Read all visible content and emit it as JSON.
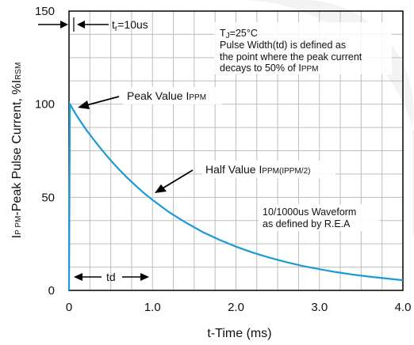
{
  "chart_data": {
    "type": "line",
    "title": "",
    "xlabel": "t-Time (ms)",
    "ylabel": "IPPM-Peak Pulse Current, %IRSM",
    "ylabel_parts": {
      "main": "I",
      "sub": "P PM",
      "rest": "-Peak Pulse Current, %I",
      "sub2": "RSM"
    },
    "xlim": [
      0,
      4.0
    ],
    "ylim": [
      0,
      150
    ],
    "x_ticks": [
      0,
      1.0,
      2.0,
      3.0,
      4.0
    ],
    "x_tick_labels": [
      "0",
      "1.0",
      "2.0",
      "3.0",
      "4.0"
    ],
    "y_ticks": [
      0,
      50,
      100,
      150
    ],
    "y_tick_labels": [
      "0",
      "50",
      "100",
      "150"
    ],
    "grid": true,
    "series": [
      {
        "color": "#1a9ad6",
        "x": [
          0,
          0.01,
          0.1,
          0.2,
          0.3,
          0.4,
          0.5,
          0.6,
          0.7,
          0.8,
          0.9,
          1.0,
          1.2,
          1.4,
          1.6,
          1.8,
          2.0,
          2.2,
          2.4,
          2.6,
          2.8,
          3.0,
          3.2,
          3.4,
          3.6,
          3.8,
          4.0
        ],
        "values": [
          0,
          100,
          93.3,
          86.7,
          80.7,
          75.1,
          69.8,
          64.9,
          60.4,
          56.2,
          52.2,
          48.6,
          42.0,
          36.4,
          31.4,
          27.2,
          23.5,
          20.3,
          17.6,
          15.2,
          13.1,
          11.4,
          9.8,
          8.5,
          7.4,
          6.4,
          5.5
        ]
      }
    ],
    "annotations": {
      "tr": {
        "main": "t",
        "sub": "r",
        "rest": "=10us"
      },
      "peak": {
        "main": "Peak Value I",
        "sub": "PPM"
      },
      "half": {
        "main": "Half Value I",
        "sub": "PPM(IPPM/2)"
      },
      "td": "td",
      "tj": {
        "main": "T",
        "sub": "J",
        "rest": "=25°C"
      },
      "note_line1": "Pulse Width(td) is defined as",
      "note_line2": "the point where the peak current",
      "note_line3_main": "decays to 50% of I",
      "note_line3_sub": "PPM",
      "waveform_line1": "10/1000us Waveform",
      "waveform_line2": "as defined by R.E.A"
    }
  }
}
